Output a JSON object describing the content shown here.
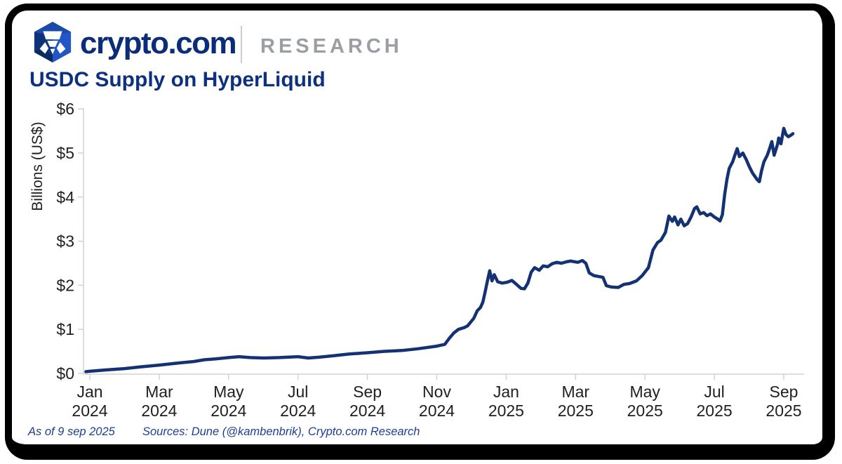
{
  "header": {
    "brand": "crypto.com",
    "brand_suffix": "RESEARCH",
    "logo_icon": "crypto-com-shield-logo"
  },
  "title": "USDC Supply on HyperLiquid",
  "footer": {
    "as_of": "As of 9 sep 2025",
    "sources": "Sources: Dune (@kambenbrik), Crypto.com Research"
  },
  "colors": {
    "line": "#143273",
    "title_navy": "#0d3181",
    "brand_navy": "#0b2c78",
    "research_gray": "#9b9fa3",
    "axis_gray": "#d2d2d2",
    "tick_text": "#1f1f1f",
    "footer_navy": "#1c3f93",
    "frame_black": "#000000",
    "logo_dark_blue": "#0e337a",
    "logo_light_blue": "#2057c5"
  },
  "chart_data": {
    "type": "line",
    "title": "USDC Supply on HyperLiquid",
    "xlabel": "",
    "ylabel": "Billions (US$)",
    "ylim": [
      0,
      6
    ],
    "x_range": [
      "2024-01-01",
      "2025-09-09"
    ],
    "grid": false,
    "legend_position": "none",
    "y_ticks": [
      "$0",
      "$1",
      "$2",
      "$3",
      "$4",
      "$5",
      "$6"
    ],
    "x_ticks": [
      {
        "month": "Jan",
        "year": "2024"
      },
      {
        "month": "Mar",
        "year": "2024"
      },
      {
        "month": "May",
        "year": "2024"
      },
      {
        "month": "Jul",
        "year": "2024"
      },
      {
        "month": "Sep",
        "year": "2024"
      },
      {
        "month": "Nov",
        "year": "2024"
      },
      {
        "month": "Jan",
        "year": "2025"
      },
      {
        "month": "Mar",
        "year": "2025"
      },
      {
        "month": "May",
        "year": "2025"
      },
      {
        "month": "Jul",
        "year": "2025"
      },
      {
        "month": "Sep",
        "year": "2025"
      }
    ],
    "series": [
      {
        "name": "USDC supply on HyperLiquid (US$ billions)",
        "points": [
          [
            "2023-12-28",
            0.04
          ],
          [
            "2024-01-01",
            0.05
          ],
          [
            "2024-01-15",
            0.08
          ],
          [
            "2024-02-01",
            0.11
          ],
          [
            "2024-02-15",
            0.15
          ],
          [
            "2024-03-01",
            0.19
          ],
          [
            "2024-03-15",
            0.23
          ],
          [
            "2024-04-01",
            0.27
          ],
          [
            "2024-04-10",
            0.31
          ],
          [
            "2024-04-20",
            0.33
          ],
          [
            "2024-05-01",
            0.36
          ],
          [
            "2024-05-10",
            0.38
          ],
          [
            "2024-05-20",
            0.36
          ],
          [
            "2024-06-01",
            0.35
          ],
          [
            "2024-06-15",
            0.36
          ],
          [
            "2024-07-01",
            0.38
          ],
          [
            "2024-07-10",
            0.35
          ],
          [
            "2024-07-20",
            0.37
          ],
          [
            "2024-08-01",
            0.4
          ],
          [
            "2024-08-15",
            0.44
          ],
          [
            "2024-09-01",
            0.47
          ],
          [
            "2024-09-15",
            0.5
          ],
          [
            "2024-10-01",
            0.52
          ],
          [
            "2024-10-15",
            0.56
          ],
          [
            "2024-11-01",
            0.62
          ],
          [
            "2024-11-08",
            0.66
          ],
          [
            "2024-11-12",
            0.8
          ],
          [
            "2024-11-16",
            0.92
          ],
          [
            "2024-11-20",
            1.0
          ],
          [
            "2024-11-25",
            1.04
          ],
          [
            "2024-11-28",
            1.08
          ],
          [
            "2024-12-03",
            1.25
          ],
          [
            "2024-12-06",
            1.42
          ],
          [
            "2024-12-09",
            1.5
          ],
          [
            "2024-12-11",
            1.62
          ],
          [
            "2024-12-13",
            1.85
          ],
          [
            "2024-12-15",
            2.1
          ],
          [
            "2024-12-17",
            2.33
          ],
          [
            "2024-12-19",
            2.1
          ],
          [
            "2024-12-21",
            2.24
          ],
          [
            "2024-12-24",
            2.08
          ],
          [
            "2024-12-28",
            2.05
          ],
          [
            "2025-01-02",
            2.07
          ],
          [
            "2025-01-06",
            2.11
          ],
          [
            "2025-01-10",
            2.02
          ],
          [
            "2025-01-14",
            1.93
          ],
          [
            "2025-01-17",
            1.92
          ],
          [
            "2025-01-20",
            2.05
          ],
          [
            "2025-01-23",
            2.3
          ],
          [
            "2025-01-26",
            2.4
          ],
          [
            "2025-01-30",
            2.34
          ],
          [
            "2025-02-03",
            2.44
          ],
          [
            "2025-02-07",
            2.42
          ],
          [
            "2025-02-11",
            2.49
          ],
          [
            "2025-02-15",
            2.52
          ],
          [
            "2025-02-19",
            2.5
          ],
          [
            "2025-02-23",
            2.53
          ],
          [
            "2025-02-27",
            2.55
          ],
          [
            "2025-03-03",
            2.52
          ],
          [
            "2025-03-07",
            2.56
          ],
          [
            "2025-03-10",
            2.5
          ],
          [
            "2025-03-13",
            2.28
          ],
          [
            "2025-03-17",
            2.22
          ],
          [
            "2025-03-21",
            2.2
          ],
          [
            "2025-03-25",
            2.18
          ],
          [
            "2025-03-28",
            1.99
          ],
          [
            "2025-04-02",
            1.96
          ],
          [
            "2025-04-08",
            1.95
          ],
          [
            "2025-04-13",
            2.02
          ],
          [
            "2025-04-18",
            2.04
          ],
          [
            "2025-04-24",
            2.1
          ],
          [
            "2025-04-29",
            2.22
          ],
          [
            "2025-05-04",
            2.4
          ],
          [
            "2025-05-08",
            2.8
          ],
          [
            "2025-05-12",
            2.97
          ],
          [
            "2025-05-15",
            3.02
          ],
          [
            "2025-05-19",
            3.2
          ],
          [
            "2025-05-22",
            3.57
          ],
          [
            "2025-05-25",
            3.45
          ],
          [
            "2025-05-27",
            3.55
          ],
          [
            "2025-05-30",
            3.37
          ],
          [
            "2025-06-02",
            3.5
          ],
          [
            "2025-06-05",
            3.35
          ],
          [
            "2025-06-08",
            3.4
          ],
          [
            "2025-06-11",
            3.55
          ],
          [
            "2025-06-14",
            3.74
          ],
          [
            "2025-06-16",
            3.78
          ],
          [
            "2025-06-19",
            3.62
          ],
          [
            "2025-06-22",
            3.65
          ],
          [
            "2025-06-25",
            3.58
          ],
          [
            "2025-06-28",
            3.62
          ],
          [
            "2025-07-01",
            3.55
          ],
          [
            "2025-07-04",
            3.5
          ],
          [
            "2025-07-06",
            3.46
          ],
          [
            "2025-07-08",
            3.6
          ],
          [
            "2025-07-10",
            4.05
          ],
          [
            "2025-07-12",
            4.4
          ],
          [
            "2025-07-14",
            4.65
          ],
          [
            "2025-07-17",
            4.8
          ],
          [
            "2025-07-19",
            4.95
          ],
          [
            "2025-07-21",
            5.1
          ],
          [
            "2025-07-23",
            4.92
          ],
          [
            "2025-07-26",
            5.0
          ],
          [
            "2025-07-29",
            4.85
          ],
          [
            "2025-08-01",
            4.7
          ],
          [
            "2025-08-04",
            4.55
          ],
          [
            "2025-08-08",
            4.4
          ],
          [
            "2025-08-10",
            4.35
          ],
          [
            "2025-08-12",
            4.6
          ],
          [
            "2025-08-14",
            4.8
          ],
          [
            "2025-08-17",
            4.95
          ],
          [
            "2025-08-19",
            5.1
          ],
          [
            "2025-08-21",
            5.26
          ],
          [
            "2025-08-23",
            4.95
          ],
          [
            "2025-08-26",
            5.2
          ],
          [
            "2025-08-27",
            5.34
          ],
          [
            "2025-08-29",
            5.21
          ],
          [
            "2025-09-01",
            5.56
          ],
          [
            "2025-09-03",
            5.42
          ],
          [
            "2025-09-05",
            5.37
          ],
          [
            "2025-09-07",
            5.4
          ],
          [
            "2025-09-09",
            5.44
          ]
        ]
      }
    ]
  }
}
